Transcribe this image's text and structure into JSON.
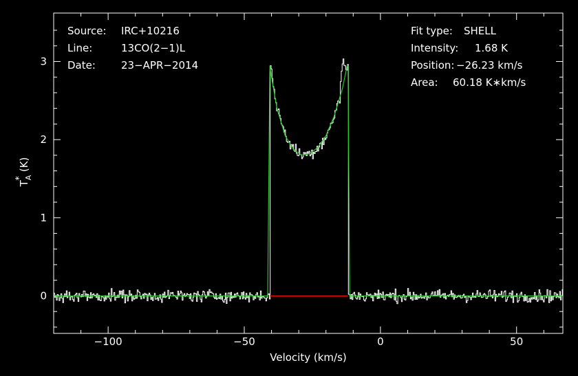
{
  "chart_data": {
    "type": "line",
    "xlabel": "Velocity (km/s)",
    "ylabel_main": "T",
    "ylabel_sub": "A",
    "ylabel_sup": "*",
    "ylabel_unit": "(K)",
    "xlim": [
      -120,
      67
    ],
    "ylim": [
      -0.48,
      3.62
    ],
    "x_ticks": [
      -100,
      -50,
      0,
      50
    ],
    "x_tick_labels": [
      "−100",
      "−50",
      "0",
      "50"
    ],
    "y_ticks": [
      0,
      1,
      2,
      3
    ],
    "y_tick_labels": [
      "0",
      "1",
      "2",
      "3"
    ],
    "info_left": [
      {
        "label": "Source:",
        "value": "IRC+10216"
      },
      {
        "label": "Line:",
        "value": "13CO(2−1)L"
      },
      {
        "label": "Date:",
        "value": "23−APR−2014"
      }
    ],
    "info_right": [
      {
        "label": "Fit type:",
        "value": "SHELL"
      },
      {
        "label": "Intensity:",
        "value": "1.68 K"
      },
      {
        "label": "Position:",
        "value": "−26.23 km/s"
      },
      {
        "label": "Area:",
        "value": "60.18 K∗km/s"
      }
    ],
    "fit_model": {
      "type": "shell",
      "vmin": -40.6,
      "vmax": -11.9,
      "baseline": 0,
      "profile_x": [
        -40.6,
        -40.0,
        -38.0,
        -35.0,
        -32.0,
        -29.0,
        -26.0,
        -23.0,
        -20.0,
        -17.0,
        -14.0,
        -12.2,
        -11.9
      ],
      "profile_y": [
        2.95,
        2.8,
        2.4,
        2.05,
        1.88,
        1.8,
        1.82,
        1.9,
        2.05,
        2.3,
        2.65,
        2.95,
        2.95
      ]
    },
    "series": [
      {
        "name": "",
        "color": "#ffffff"
      },
      {
        "name": "",
        "color": "#22cc22"
      },
      {
        "name": "",
        "color": "#ff0000"
      }
    ],
    "colors": {
      "background": "#000000",
      "frame": "#ffffff",
      "spectrum": "#ffffff",
      "fit": "#22cc22",
      "baseline": "#ff0000"
    }
  }
}
